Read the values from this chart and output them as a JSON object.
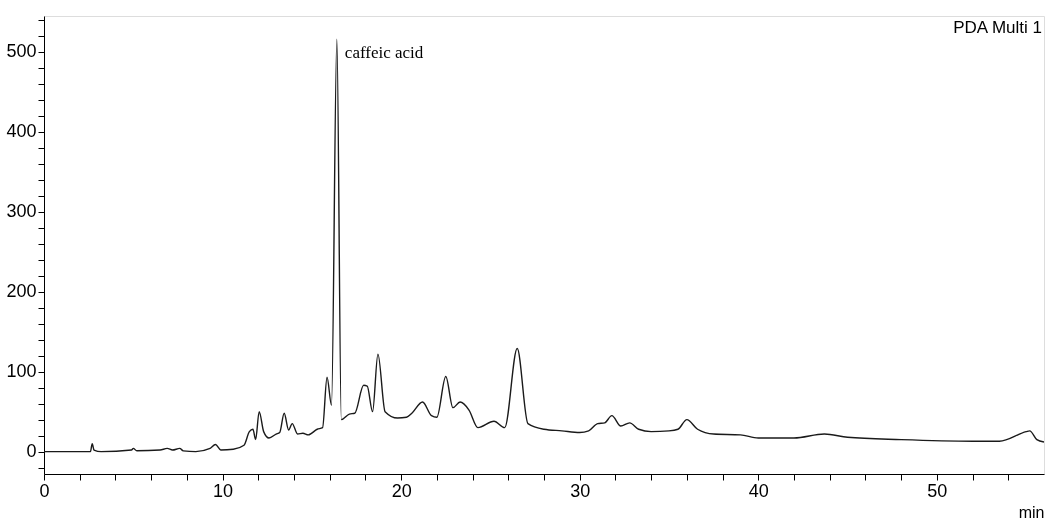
{
  "chart_data": {
    "type": "line",
    "xlabel": "min",
    "annotations": [
      "PDA Multi 1",
      {
        "text": "caffeic acid",
        "x": 16.4,
        "y": 516
      }
    ],
    "series": [
      {
        "color": "#1a1a1a",
        "x": [
          0,
          2.6,
          2.7,
          2.8,
          3.2,
          4.9,
          5.0,
          5.2,
          6.5,
          6.9,
          7.2,
          7.6,
          7.8,
          8.5,
          9.3,
          9.6,
          9.9,
          10.6,
          11.2,
          11.5,
          11.7,
          11.85,
          12.05,
          12.3,
          12.6,
          13.0,
          13.2,
          13.45,
          13.7,
          13.9,
          14.2,
          14.5,
          14.8,
          15.3,
          15.6,
          15.85,
          16.1,
          16.4,
          16.65,
          17.1,
          17.4,
          17.9,
          18.1,
          18.4,
          18.7,
          19.1,
          19.8,
          20.3,
          20.6,
          21.2,
          21.7,
          22.0,
          22.5,
          22.9,
          23.3,
          23.8,
          24.3,
          25.2,
          25.8,
          26.5,
          27.1,
          28.0,
          29.0,
          30.0,
          30.5,
          31.0,
          31.4,
          31.8,
          32.3,
          32.8,
          33.3,
          34.0,
          35.0,
          35.5,
          36.0,
          36.6,
          37.5,
          39.0,
          40.0,
          42.0,
          43.7,
          45.0,
          48.0,
          52.0,
          53.5,
          55.0,
          55.2,
          55.6,
          56
        ],
        "values": [
          0,
          0,
          10,
          2,
          0,
          2,
          4,
          1,
          2,
          4,
          2,
          4,
          1,
          0,
          4,
          9,
          2,
          3,
          8,
          25,
          28,
          15,
          50,
          25,
          17,
          22,
          24,
          48,
          27,
          35,
          22,
          23,
          21,
          28,
          30,
          93,
          58,
          516,
          40,
          47,
          48,
          83,
          82,
          50,
          122,
          50,
          42,
          43,
          48,
          62,
          45,
          43,
          94,
          55,
          62,
          52,
          30,
          38,
          30,
          129,
          35,
          28,
          26,
          24,
          26,
          35,
          36,
          45,
          32,
          36,
          28,
          25,
          26,
          28,
          40,
          28,
          22,
          21,
          17,
          17,
          22,
          18,
          15,
          13,
          13,
          25,
          26,
          15,
          12
        ]
      }
    ],
    "xlim": [
      0,
      56
    ],
    "xticks": [
      0,
      {
        "value": 2,
        "label": null
      },
      {
        "value": 4,
        "label": null
      },
      {
        "value": 6,
        "label": null
      },
      {
        "value": 8,
        "label": null
      },
      10,
      {
        "value": 12,
        "label": null
      },
      {
        "value": 14,
        "label": null
      },
      {
        "value": 16,
        "label": null
      },
      {
        "value": 18,
        "label": null
      },
      20,
      {
        "value": 22,
        "label": null
      },
      {
        "value": 24,
        "label": null
      },
      {
        "value": 26,
        "label": null
      },
      {
        "value": 28,
        "label": null
      },
      30,
      {
        "value": 32,
        "label": null
      },
      {
        "value": 34,
        "label": null
      },
      {
        "value": 36,
        "label": null
      },
      {
        "value": 38,
        "label": null
      },
      40,
      {
        "value": 42,
        "label": null
      },
      {
        "value": 44,
        "label": null
      },
      {
        "value": 46,
        "label": null
      },
      {
        "value": 48,
        "label": null
      },
      50,
      {
        "value": 52,
        "label": null
      },
      {
        "value": 54,
        "label": null
      }
    ],
    "ylim": [
      -28,
      545
    ],
    "yticks": [
      {
        "value": -20,
        "label": null
      },
      0,
      {
        "value": 20,
        "label": null
      },
      {
        "value": 40,
        "label": null
      },
      {
        "value": 60,
        "label": null
      },
      {
        "value": 80,
        "label": null
      },
      100,
      {
        "value": 120,
        "label": null
      },
      {
        "value": 140,
        "label": null
      },
      {
        "value": 160,
        "label": null
      },
      {
        "value": 180,
        "label": null
      },
      200,
      {
        "value": 220,
        "label": null
      },
      {
        "value": 240,
        "label": null
      },
      {
        "value": 260,
        "label": null
      },
      {
        "value": 280,
        "label": null
      },
      300,
      {
        "value": 320,
        "label": null
      },
      {
        "value": 340,
        "label": null
      },
      {
        "value": 360,
        "label": null
      },
      {
        "value": 380,
        "label": null
      },
      400,
      {
        "value": 420,
        "label": null
      },
      {
        "value": 440,
        "label": null
      },
      {
        "value": 460,
        "label": null
      },
      {
        "value": 480,
        "label": null
      },
      500,
      {
        "value": 520,
        "label": null
      },
      {
        "value": 540,
        "label": null
      }
    ],
    "grid": false,
    "marker": "none",
    "line_style": "solid"
  }
}
